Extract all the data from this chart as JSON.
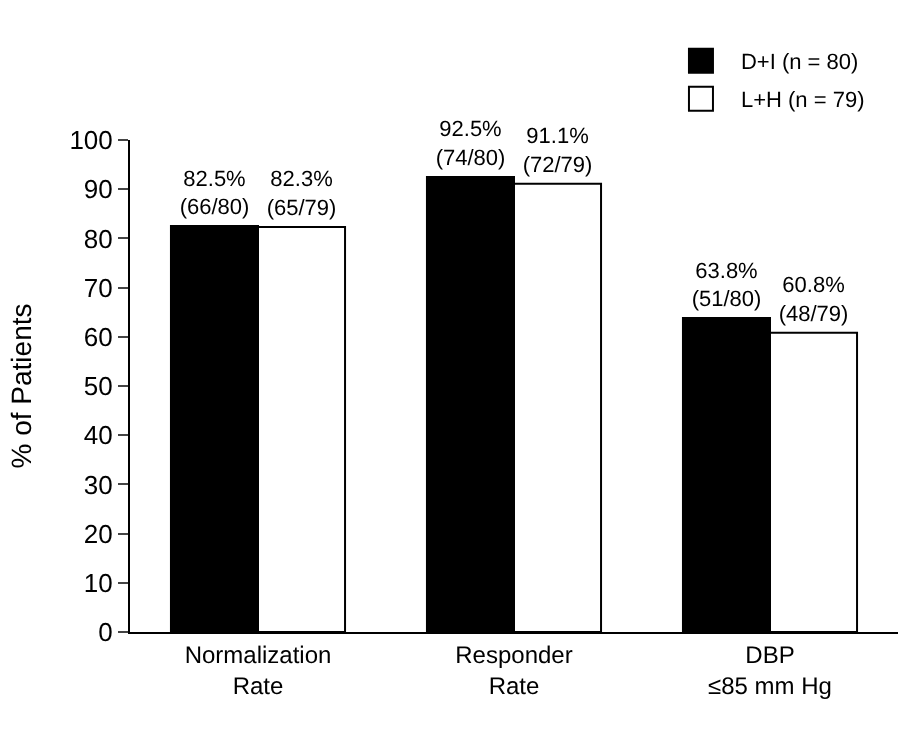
{
  "chart_data": {
    "type": "bar",
    "ylabel": "% of Patients",
    "categories": [
      "Normalization\nRate",
      "Responder\nRate",
      "DBP\n≤85 mm Hg"
    ],
    "series": [
      {
        "name": "D+I (n = 80)",
        "color": "#000000",
        "values": [
          82.5,
          92.5,
          63.8
        ],
        "value_labels": [
          "82.5%\n(66/80)",
          "92.5%\n(74/80)",
          "63.8%\n(51/80)"
        ]
      },
      {
        "name": "L+H (n = 79)",
        "color": "#ffffff",
        "values": [
          82.3,
          91.1,
          60.8
        ],
        "value_labels": [
          "82.3%\n(65/79)",
          "91.1%\n(72/79)",
          "60.8%\n(48/79)"
        ]
      }
    ],
    "ylim": [
      0,
      100
    ],
    "yticks": [
      0,
      10,
      20,
      30,
      40,
      50,
      60,
      70,
      80,
      90,
      100
    ],
    "legend": "top right"
  }
}
